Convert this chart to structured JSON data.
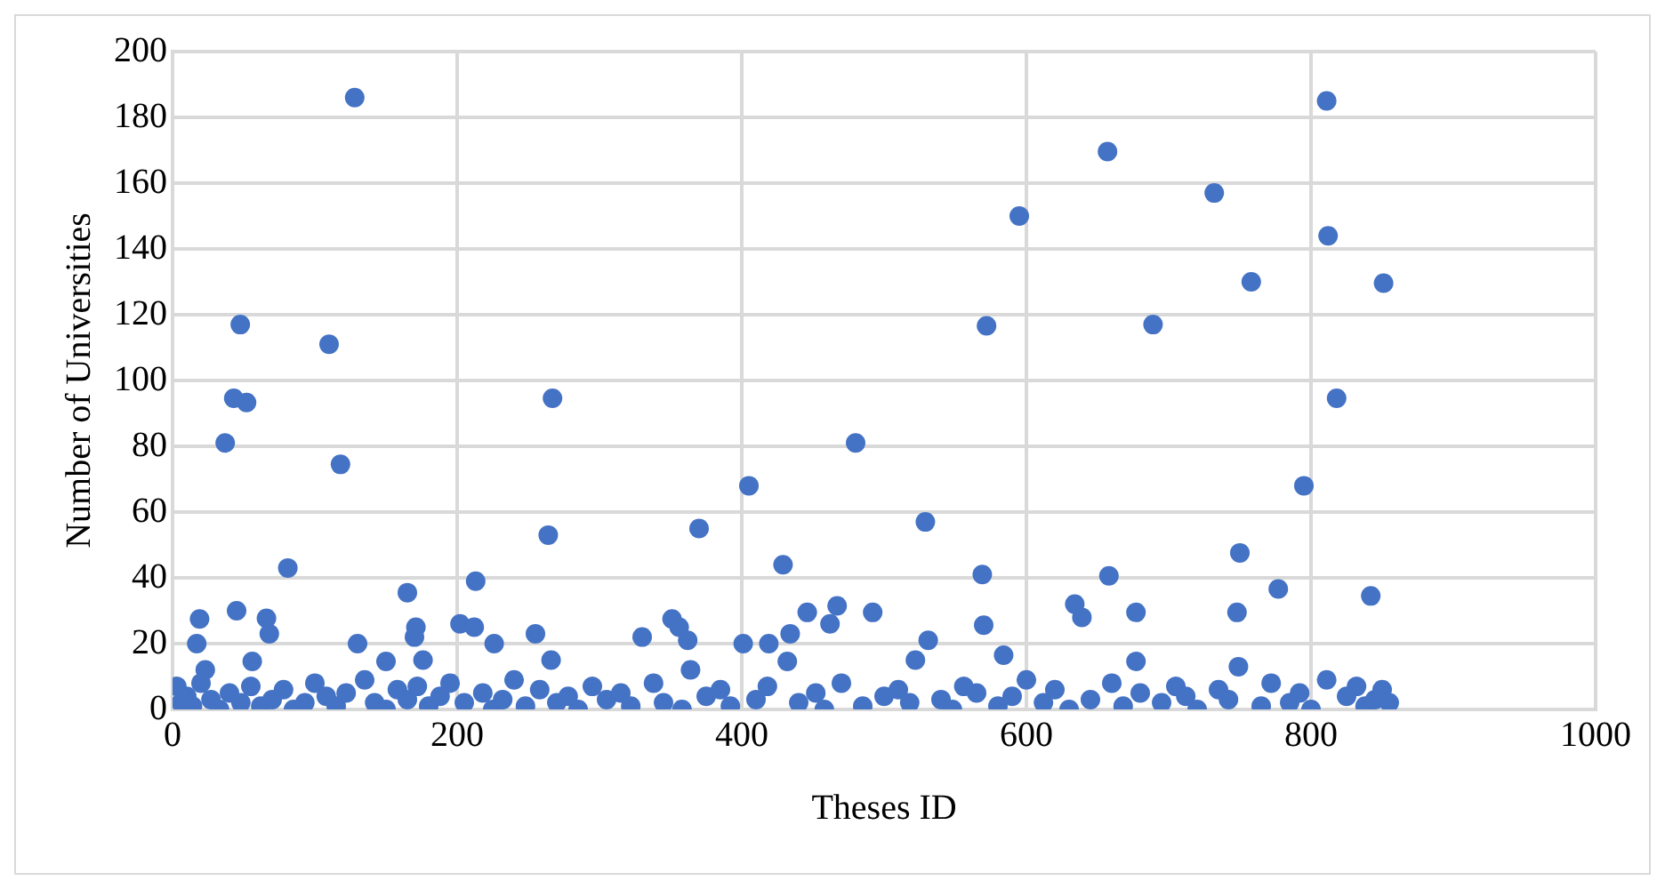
{
  "chart_data": {
    "type": "scatter",
    "xlabel": "Theses ID",
    "ylabel": "Number of Universities",
    "xlim": [
      0,
      1000
    ],
    "xticks": [
      0,
      200,
      400,
      600,
      800,
      1000
    ],
    "ylim": [
      0,
      200
    ],
    "yticks": [
      0,
      20,
      40,
      60,
      80,
      100,
      120,
      140,
      160,
      180,
      200
    ],
    "grid": true,
    "legend": false,
    "marker": "circle",
    "series": [
      {
        "color": "#4472c4",
        "x": [
          128,
          47.6,
          110,
          43,
          52,
          267,
          37,
          118,
          480,
          405,
          81,
          264,
          370,
          429,
          165,
          213,
          45,
          19,
          66,
          68,
          17,
          130,
          202,
          212,
          171,
          170,
          226,
          255,
          330,
          351,
          356,
          362,
          401,
          419,
          434,
          446,
          467,
          462,
          492,
          56,
          23,
          150,
          266,
          432,
          176,
          364,
          811,
          657,
          732,
          595,
          812,
          758,
          851,
          572,
          689,
          818,
          795,
          529,
          750,
          569,
          658,
          777,
          842,
          634,
          639,
          677,
          748,
          570,
          531,
          522,
          584,
          677,
          749,
          811,
          3,
          6,
          10,
          14,
          20,
          27,
          33,
          40,
          48,
          55,
          62,
          70,
          78,
          85,
          93,
          100,
          108,
          115,
          122,
          135,
          142,
          150,
          158,
          165,
          172,
          180,
          188,
          195,
          205,
          218,
          225,
          232,
          240,
          248,
          258,
          270,
          278,
          285,
          295,
          305,
          315,
          322,
          338,
          345,
          358,
          375,
          385,
          392,
          410,
          418,
          440,
          452,
          458,
          470,
          485,
          500,
          510,
          518,
          540,
          548,
          556,
          565,
          580,
          590,
          600,
          612,
          620,
          630,
          645,
          660,
          668,
          680,
          695,
          705,
          712,
          720,
          735,
          742,
          765,
          772,
          785,
          792,
          800,
          825,
          832,
          838,
          845,
          850,
          855
        ],
        "values": [
          186,
          117,
          111,
          94.6,
          93.3,
          94.6,
          81,
          74.5,
          81,
          68,
          43,
          53,
          55,
          44,
          35.5,
          39,
          30,
          27.5,
          27.7,
          23,
          20,
          20,
          26,
          25,
          25,
          22,
          20,
          23,
          22,
          27.5,
          25,
          21,
          20,
          20,
          23,
          29.5,
          31.5,
          26,
          29.5,
          14.6,
          12,
          14.6,
          15,
          14.6,
          15,
          12,
          185,
          169.6,
          157,
          150,
          144,
          130,
          129.6,
          116.6,
          117,
          94.6,
          68,
          57,
          47.6,
          41,
          40.6,
          36.6,
          34.5,
          32,
          28,
          29.5,
          29.5,
          25.6,
          21,
          15,
          16.5,
          14.6,
          13,
          9,
          7,
          2,
          4,
          1,
          8,
          3,
          0,
          5,
          2,
          7,
          1,
          3,
          6,
          0,
          2,
          8,
          4,
          1,
          5,
          9,
          2,
          0,
          6,
          3,
          7,
          1,
          4,
          8,
          2,
          5,
          0,
          3,
          9,
          1,
          6,
          2,
          4,
          0,
          7,
          3,
          5,
          1,
          8,
          2,
          0,
          4,
          6,
          1,
          3,
          7,
          2,
          5,
          0,
          8,
          1,
          4,
          6,
          2,
          3,
          0,
          7,
          5,
          1,
          4,
          9,
          2,
          6,
          0,
          3,
          8,
          1,
          5,
          2,
          7,
          4,
          0,
          6,
          3,
          1,
          8,
          2,
          5,
          0,
          4,
          7,
          1,
          3,
          6,
          2
        ]
      }
    ]
  }
}
